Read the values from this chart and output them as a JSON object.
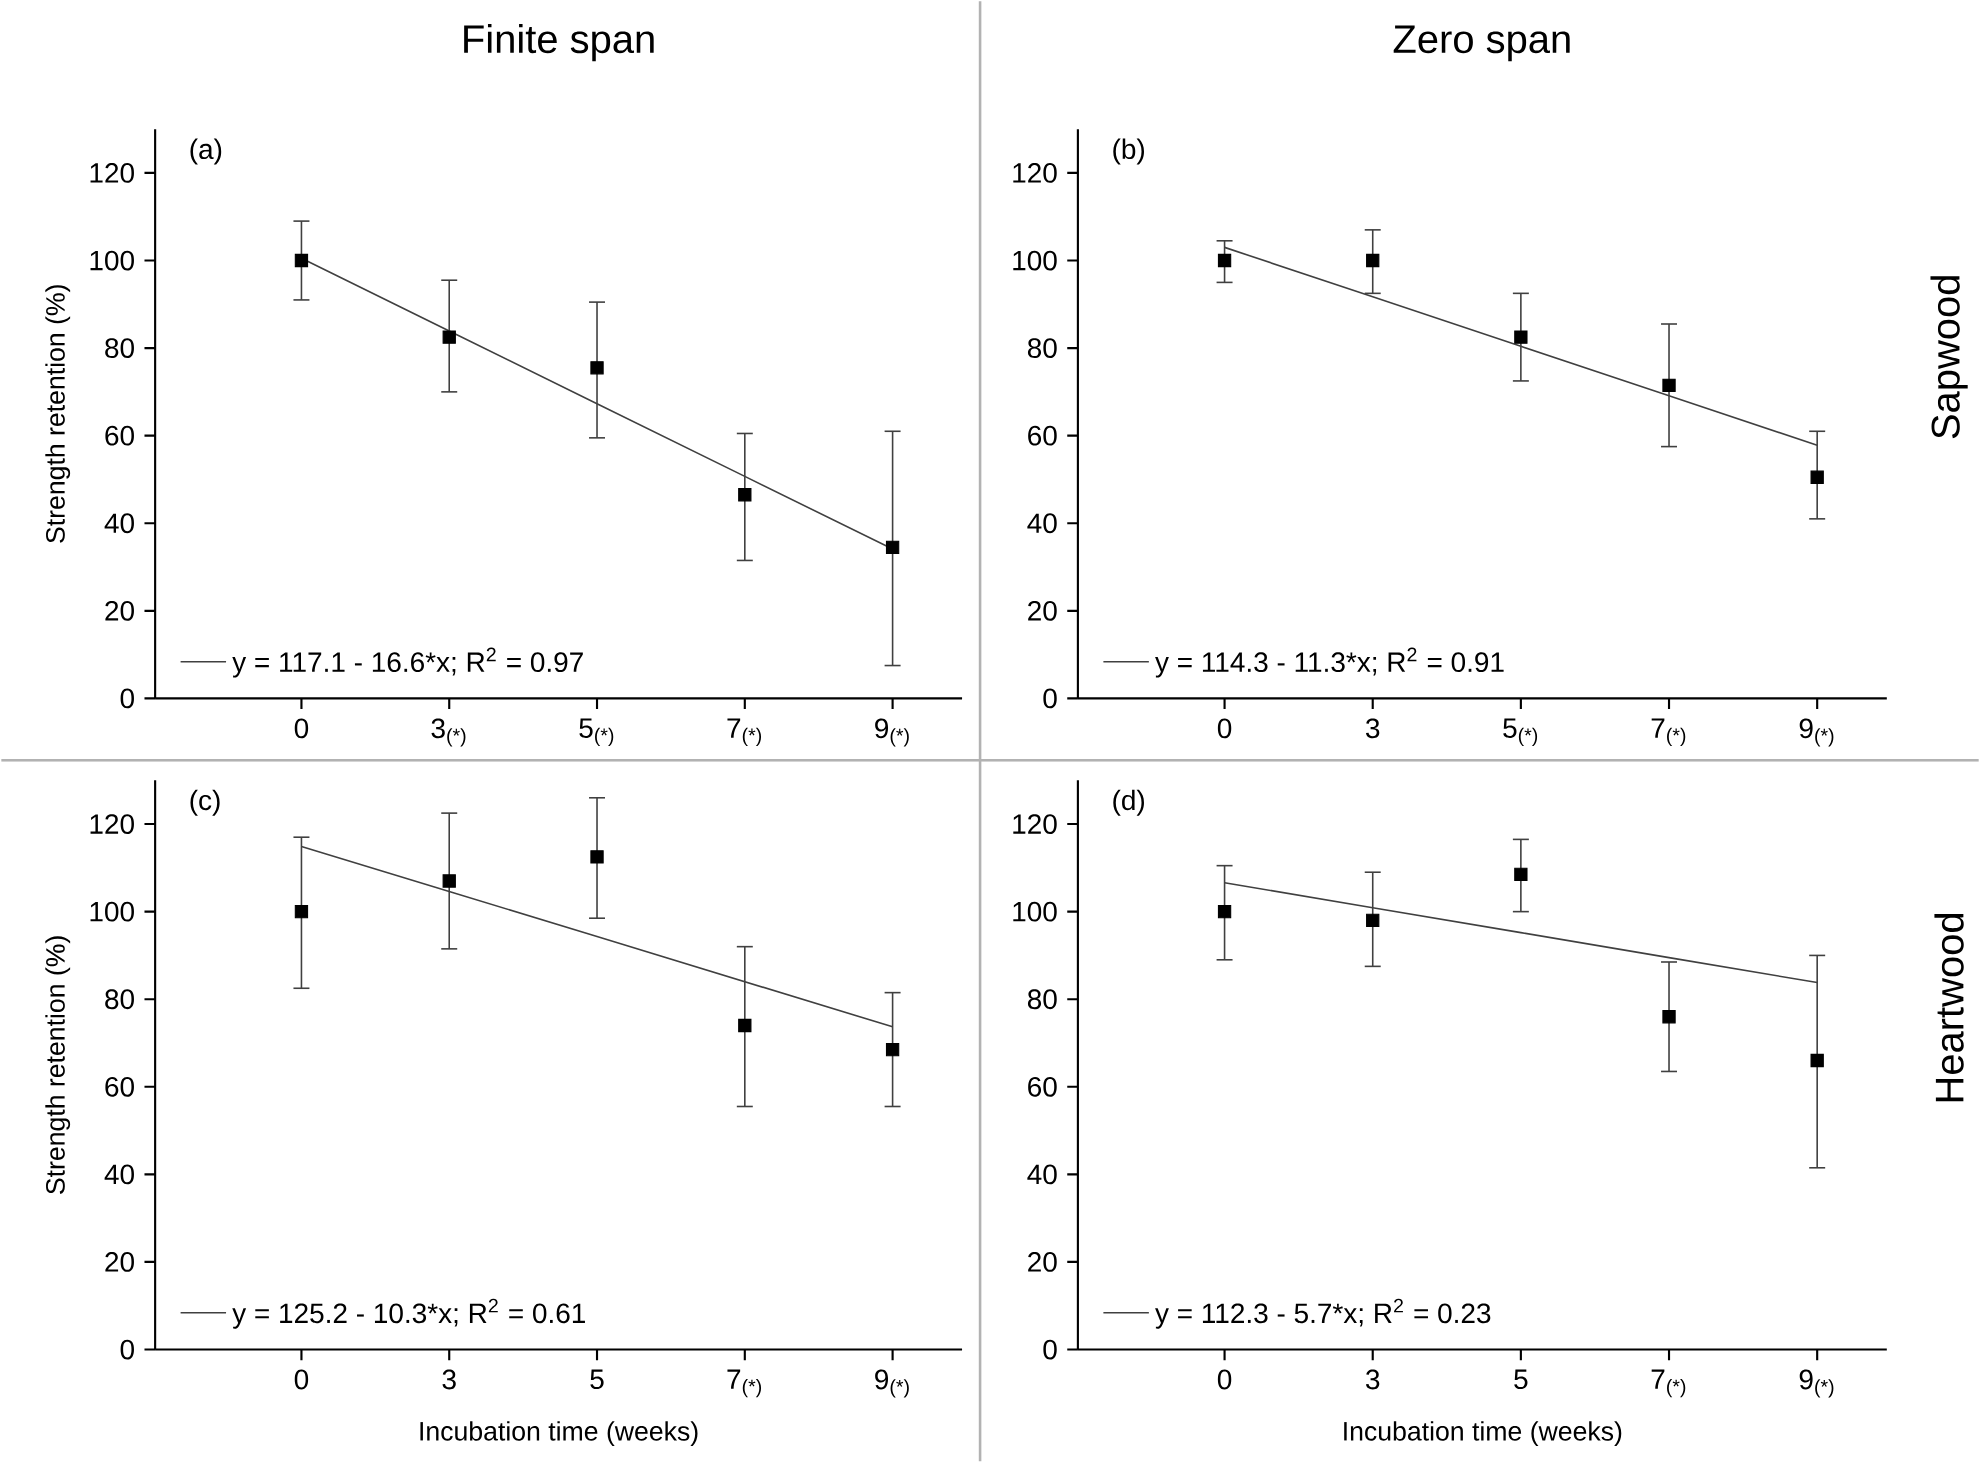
{
  "chart_data": [
    {
      "type": "scatter",
      "title": "Finite span",
      "ylabel": "Strength retention (%)",
      "annotations": [
        "(a)"
      ],
      "legend": "bottom left",
      "grid": false,
      "categories": [
        "0",
        "3$_{(*)}$",
        "5$_{(*)}$",
        "7$_{(*)}$",
        "9$_{(*)}$"
      ],
      "ylim": [
        0,
        130
      ],
      "yticks": [
        0,
        20,
        40,
        60,
        80,
        100,
        120
      ],
      "series": [
        {
          "color": "#000000",
          "marker": "square",
          "values": [
            100,
            82.5,
            75.5,
            46.5,
            34.5
          ],
          "errors": [
            [
              91,
              109
            ],
            [
              70,
              95.5
            ],
            [
              59.5,
              90.5
            ],
            [
              31.5,
              60.5
            ],
            [
              7.5,
              61
            ]
          ]
        },
        {
          "type": "line",
          "name": "y = 117.1 - 16.6*x; R$^{2}$ = 0.97",
          "color": "#404040",
          "values": [
            100.5,
            83.9,
            67.3,
            50.7,
            34.1
          ]
        }
      ]
    },
    {
      "type": "scatter",
      "title": "Zero span",
      "annotations": [
        "(b)",
        "Sapwood"
      ],
      "legend": "bottom left",
      "grid": false,
      "categories": [
        "0",
        "3",
        "5$_{(*)}$",
        "7$_{(*)}$",
        "9$_{(*)}$"
      ],
      "ylim": [
        0,
        130
      ],
      "yticks": [
        0,
        20,
        40,
        60,
        80,
        100,
        120
      ],
      "series": [
        {
          "color": "#000000",
          "marker": "square",
          "values": [
            100,
            100,
            82.5,
            71.5,
            50.5
          ],
          "errors": [
            [
              95,
              104.5
            ],
            [
              92.5,
              107
            ],
            [
              72.5,
              92.5
            ],
            [
              57.5,
              85.5
            ],
            [
              41,
              61
            ]
          ]
        },
        {
          "type": "line",
          "name": "y = 114.3 - 11.3*x; R$^{2}$ = 0.91",
          "color": "#404040",
          "values": [
            103,
            91.7,
            80.4,
            69.1,
            57.8
          ]
        }
      ]
    },
    {
      "type": "scatter",
      "xlabel": "Incubation time (weeks)",
      "ylabel": "Strength retention (%)",
      "annotations": [
        "(c)"
      ],
      "legend": "bottom left",
      "grid": false,
      "categories": [
        "0",
        "3",
        "5",
        "7$_{(*)}$",
        "9$_{(*)}$"
      ],
      "ylim": [
        0,
        130
      ],
      "yticks": [
        0,
        20,
        40,
        60,
        80,
        100,
        120
      ],
      "series": [
        {
          "color": "#000000",
          "marker": "square",
          "values": [
            100,
            107,
            112.5,
            74,
            68.5
          ],
          "errors": [
            [
              82.5,
              117
            ],
            [
              91.5,
              122.5
            ],
            [
              98.5,
              126
            ],
            [
              55.5,
              92
            ],
            [
              55.5,
              81.5
            ]
          ]
        },
        {
          "type": "line",
          "name": "y = 125.2 - 10.3*x; R$^{2}$ = 0.61",
          "color": "#404040",
          "values": [
            114.9,
            104.6,
            94.3,
            84,
            73.7
          ]
        }
      ]
    },
    {
      "type": "scatter",
      "xlabel": "Incubation time (weeks)",
      "annotations": [
        "(d)",
        "Heartwood"
      ],
      "legend": "bottom left",
      "grid": false,
      "categories": [
        "0",
        "3",
        "5",
        "7$_{(*)}$",
        "9$_{(*)}$"
      ],
      "ylim": [
        0,
        130
      ],
      "yticks": [
        0,
        20,
        40,
        60,
        80,
        100,
        120
      ],
      "series": [
        {
          "color": "#000000",
          "marker": "square",
          "values": [
            100,
            98,
            108.5,
            76,
            66
          ],
          "errors": [
            [
              89,
              110.5
            ],
            [
              87.5,
              109
            ],
            [
              100,
              116.5
            ],
            [
              63.5,
              88.5
            ],
            [
              41.5,
              90
            ]
          ]
        },
        {
          "type": "line",
          "name": "y = 112.3 - 5.7*x; R$^{2}$ = 0.23",
          "color": "#404040",
          "values": [
            106.6,
            100.9,
            95.2,
            89.5,
            83.8
          ]
        }
      ]
    }
  ]
}
